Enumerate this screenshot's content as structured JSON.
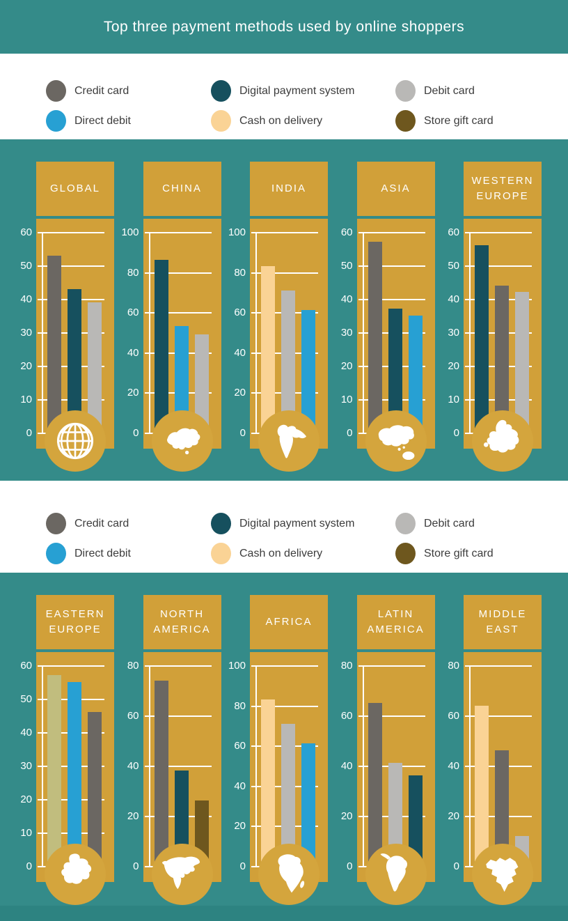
{
  "title": "Top three payment methods used by online shoppers",
  "colors": {
    "background_teal": "#348b89",
    "footer_teal": "#2d8381",
    "panel_gold": "#d1a039",
    "circle_gold": "#d4a53d",
    "band_white": "#ffffff",
    "title_text": "#ffffff",
    "tick_text": "#ffffff",
    "grid_line": "#ffffff",
    "legend_text": "#3c3c3c"
  },
  "palette": {
    "credit_card": "#6b6762",
    "direct_debit": "#27a0d3",
    "digital_payment_system": "#16505e",
    "cash_on_delivery": "#fad395",
    "debit_card": "#b9b8b6",
    "store_gift_card": "#6e571e",
    "cash_on_delivery_khaki_variant": "#c1bd7e"
  },
  "legend": {
    "items": [
      {
        "label": "Credit card",
        "color_key": "credit_card"
      },
      {
        "label": "Direct debit",
        "color_key": "direct_debit"
      },
      {
        "label": "Digital payment system",
        "color_key": "digital_payment_system"
      },
      {
        "label": "Cash on delivery",
        "color_key": "cash_on_delivery"
      },
      {
        "label": "Debit card",
        "color_key": "debit_card"
      },
      {
        "label": "Store gift card",
        "color_key": "store_gift_card"
      }
    ]
  },
  "chart_data": [
    {
      "type": "bar",
      "row": 1,
      "region": "GLOBAL",
      "icon": "globe-icon",
      "ylim": [
        0,
        60
      ],
      "ystep": 10,
      "yticks": [
        0,
        10,
        20,
        30,
        40,
        50,
        60
      ],
      "grid": true,
      "bars": [
        {
          "method": "Credit card",
          "color_key": "credit_card",
          "value": 53
        },
        {
          "method": "Digital payment system",
          "color_key": "digital_payment_system",
          "value": 43
        },
        {
          "method": "Debit card",
          "color_key": "debit_card",
          "value": 39
        }
      ]
    },
    {
      "type": "bar",
      "row": 1,
      "region": "CHINA",
      "icon": "china-map-icon",
      "ylim": [
        0,
        100
      ],
      "ystep": 20,
      "yticks": [
        0,
        20,
        40,
        60,
        80,
        100
      ],
      "grid": true,
      "bars": [
        {
          "method": "Digital payment system",
          "color_key": "digital_payment_system",
          "value": 86
        },
        {
          "method": "Direct debit",
          "color_key": "direct_debit",
          "value": 53
        },
        {
          "method": "Debit card",
          "color_key": "debit_card",
          "value": 49
        }
      ]
    },
    {
      "type": "bar",
      "row": 1,
      "region": "INDIA",
      "icon": "india-map-icon",
      "ylim": [
        0,
        100
      ],
      "ystep": 20,
      "yticks": [
        0,
        20,
        40,
        60,
        80,
        100
      ],
      "grid": true,
      "bars": [
        {
          "method": "Cash on delivery",
          "color_key": "cash_on_delivery",
          "value": 83
        },
        {
          "method": "Debit card",
          "color_key": "debit_card",
          "value": 71
        },
        {
          "method": "Direct debit",
          "color_key": "direct_debit",
          "value": 61
        }
      ]
    },
    {
      "type": "bar",
      "row": 1,
      "region": "ASIA",
      "icon": "asia-map-icon",
      "ylim": [
        0,
        60
      ],
      "ystep": 10,
      "yticks": [
        0,
        10,
        20,
        30,
        40,
        50,
        60
      ],
      "grid": true,
      "bars": [
        {
          "method": "Credit card",
          "color_key": "credit_card",
          "value": 57
        },
        {
          "method": "Digital payment system",
          "color_key": "digital_payment_system",
          "value": 37
        },
        {
          "method": "Direct debit",
          "color_key": "direct_debit",
          "value": 35
        }
      ]
    },
    {
      "type": "bar",
      "row": 1,
      "region": "WESTERN EUROPE",
      "icon": "europe-map-icon",
      "ylim": [
        0,
        60
      ],
      "ystep": 10,
      "yticks": [
        0,
        10,
        20,
        30,
        40,
        50,
        60
      ],
      "grid": true,
      "bars": [
        {
          "method": "Digital payment system",
          "color_key": "digital_payment_system",
          "value": 56
        },
        {
          "method": "Credit card",
          "color_key": "credit_card",
          "value": 44
        },
        {
          "method": "Debit card",
          "color_key": "debit_card",
          "value": 42
        }
      ]
    },
    {
      "type": "bar",
      "row": 2,
      "region": "EASTERN EUROPE",
      "icon": "eastern-europe-map-icon",
      "ylim": [
        0,
        60
      ],
      "ystep": 10,
      "yticks": [
        0,
        10,
        20,
        30,
        40,
        50,
        60
      ],
      "grid": true,
      "bars": [
        {
          "method": "Cash on delivery",
          "color_key": "cash_on_delivery_khaki_variant",
          "value": 57,
          "note": "bar rendered in khaki shade differing from legend swatch"
        },
        {
          "method": "Direct debit",
          "color_key": "direct_debit",
          "value": 55
        },
        {
          "method": "Credit card",
          "color_key": "credit_card",
          "value": 46
        }
      ]
    },
    {
      "type": "bar",
      "row": 2,
      "region": "NORTH AMERICA",
      "icon": "north-america-map-icon",
      "ylim": [
        0,
        80
      ],
      "ystep": 20,
      "yticks": [
        0,
        20,
        40,
        60,
        80
      ],
      "grid": true,
      "bars": [
        {
          "method": "Credit card",
          "color_key": "credit_card",
          "value": 74
        },
        {
          "method": "Digital payment system",
          "color_key": "digital_payment_system",
          "value": 38
        },
        {
          "method": "Store gift card",
          "color_key": "store_gift_card",
          "value": 26
        }
      ]
    },
    {
      "type": "bar",
      "row": 2,
      "region": "AFRICA",
      "icon": "africa-map-icon",
      "ylim": [
        0,
        100
      ],
      "ystep": 20,
      "yticks": [
        0,
        20,
        40,
        60,
        80,
        100
      ],
      "grid": true,
      "bars": [
        {
          "method": "Cash on delivery",
          "color_key": "cash_on_delivery",
          "value": 83
        },
        {
          "method": "Debit card",
          "color_key": "debit_card",
          "value": 71
        },
        {
          "method": "Direct debit",
          "color_key": "direct_debit",
          "value": 61
        }
      ]
    },
    {
      "type": "bar",
      "row": 2,
      "region": "LATIN AMERICA",
      "icon": "south-america-map-icon",
      "ylim": [
        0,
        80
      ],
      "ystep": 20,
      "yticks": [
        0,
        20,
        40,
        60,
        80
      ],
      "grid": true,
      "bars": [
        {
          "method": "Credit card",
          "color_key": "credit_card",
          "value": 65
        },
        {
          "method": "Debit card",
          "color_key": "debit_card",
          "value": 41
        },
        {
          "method": "Digital payment system",
          "color_key": "digital_payment_system",
          "value": 36
        }
      ]
    },
    {
      "type": "bar",
      "row": 2,
      "region": "MIDDLE EAST",
      "icon": "middle-east-map-icon",
      "ylim": [
        0,
        80
      ],
      "ystep": 20,
      "yticks": [
        0,
        20,
        40,
        60,
        80
      ],
      "grid": true,
      "bars": [
        {
          "method": "Cash on delivery",
          "color_key": "cash_on_delivery",
          "value": 64
        },
        {
          "method": "Credit card",
          "color_key": "credit_card",
          "value": 46
        },
        {
          "method": "Debit card",
          "color_key": "debit_card",
          "value": 12
        }
      ]
    }
  ]
}
